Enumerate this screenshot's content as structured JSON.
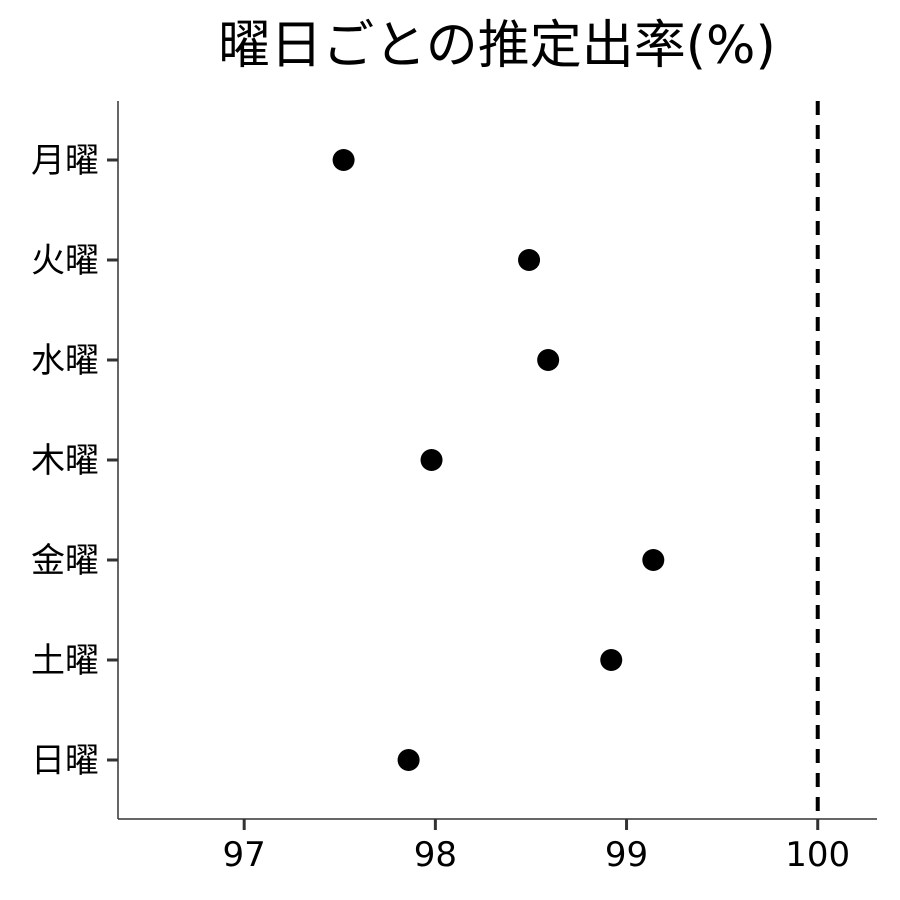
{
  "chart_data": {
    "type": "scatter",
    "title": "曜日ごとの推定出率(%)",
    "xlabel": "",
    "ylabel": "",
    "categories": [
      "月曜",
      "火曜",
      "水曜",
      "木曜",
      "金曜",
      "土曜",
      "日曜"
    ],
    "values": [
      97.52,
      98.49,
      98.59,
      97.98,
      99.14,
      98.92,
      97.86
    ],
    "x_ticks": [
      "97",
      "98",
      "99",
      "100"
    ],
    "xlim": [
      96.34,
      100.31
    ],
    "reference_line": {
      "x": 100,
      "style": "dashed"
    },
    "grid": false,
    "legend": "none"
  }
}
